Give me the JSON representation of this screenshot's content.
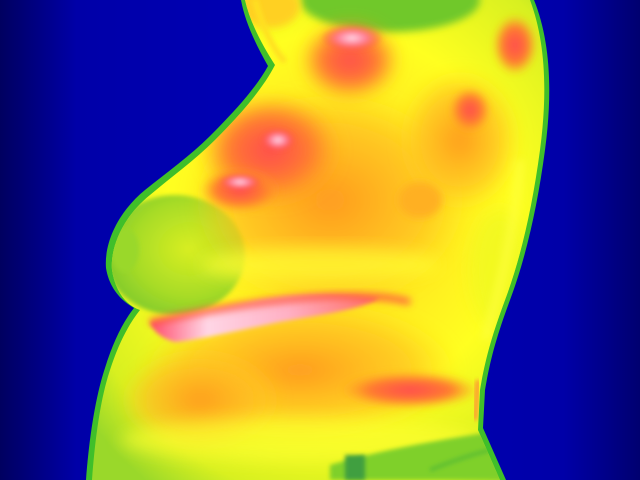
{
  "image": {
    "subject": "thermal-image-torso-side-view",
    "palette": {
      "background": "#0000b4",
      "background_edge": "#000060",
      "outline_green": "#3fbf2a",
      "cool_green": "#8fd62a",
      "warm_yellow": "#ffff20",
      "warm_orange": "#ffb020",
      "hot_orange": "#ff7a20",
      "hot_red": "#ff3a3a",
      "hot_pink": "#ff6f86",
      "hottest_white": "#ffe0ea"
    }
  }
}
